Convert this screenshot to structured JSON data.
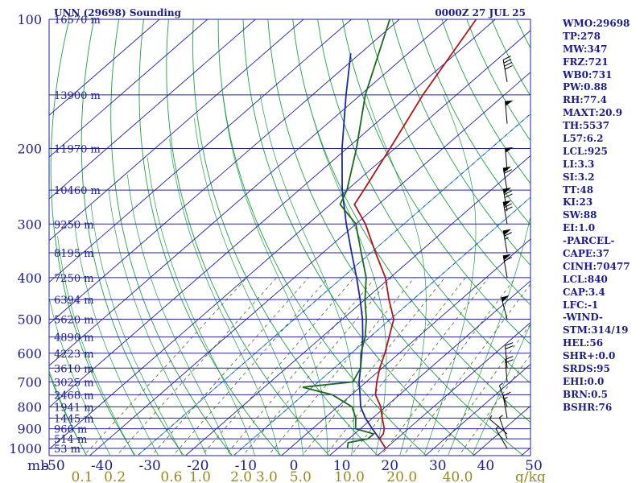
{
  "header": {
    "station": "UNN (29698) Sounding",
    "time": "0000Z 27 JUL 25"
  },
  "chart_data": {
    "type": "skew-t",
    "p_top": 100,
    "p_bottom": 1050,
    "t_min": -50,
    "t_max": 50,
    "pressure_labels": [
      "100",
      "200",
      "300",
      "400",
      "500",
      "600",
      "700",
      "800",
      "900",
      "1000"
    ],
    "pressure_unit": "mb",
    "height_levels": [
      {
        "p": 100,
        "label": "16570 m"
      },
      {
        "p": 150,
        "label": "13900 m"
      },
      {
        "p": 200,
        "label": "11970 m"
      },
      {
        "p": 250,
        "label": "10460 m"
      },
      {
        "p": 300,
        "label": "9250 m"
      },
      {
        "p": 350,
        "label": "8195 m"
      },
      {
        "p": 400,
        "label": "7250 m"
      },
      {
        "p": 450,
        "label": "6394 m"
      },
      {
        "p": 500,
        "label": "5620 m"
      },
      {
        "p": 550,
        "label": "4890 m"
      },
      {
        "p": 600,
        "label": "4223 m"
      },
      {
        "p": 650,
        "label": "3610 m"
      },
      {
        "p": 700,
        "label": "3025 m"
      },
      {
        "p": 750,
        "label": "2468 m"
      },
      {
        "p": 800,
        "label": "1941 m"
      },
      {
        "p": 850,
        "label": "1445 m"
      },
      {
        "p": 900,
        "label": "966 m"
      },
      {
        "p": 950,
        "label": "514 m"
      },
      {
        "p": 1000,
        "label": "53 m"
      }
    ],
    "temp_ticks": [
      "-50",
      "-40",
      "-30",
      "-20",
      "-10",
      "0",
      "10",
      "20",
      "30",
      "40",
      "50"
    ],
    "mixing_ratio_labels": [
      {
        "w": 0.1,
        "label": "0.1"
      },
      {
        "w": 0.2,
        "label": "0.2"
      },
      {
        "w": 0.6,
        "label": "0.6"
      },
      {
        "w": 1.0,
        "label": "1.0"
      },
      {
        "w": 2.0,
        "label": "2.0"
      },
      {
        "w": 3.0,
        "label": "3.0"
      },
      {
        "w": 5.0,
        "label": "5.0"
      },
      {
        "w": 10.0,
        "label": "10.0"
      },
      {
        "w": 20.0,
        "label": "20.0"
      },
      {
        "w": 40.0,
        "label": "40.0"
      }
    ],
    "mixing_ratio_unit": "g/kg",
    "temperature": [
      [
        1000,
        20.0
      ],
      [
        950,
        16.4
      ],
      [
        925,
        16.0
      ],
      [
        900,
        15.0
      ],
      [
        850,
        12.0
      ],
      [
        800,
        9.0
      ],
      [
        750,
        5.0
      ],
      [
        700,
        2.2
      ],
      [
        650,
        -0.5
      ],
      [
        600,
        -3.0
      ],
      [
        550,
        -6.0
      ],
      [
        500,
        -9.3
      ],
      [
        450,
        -15.0
      ],
      [
        400,
        -21.0
      ],
      [
        350,
        -29.0
      ],
      [
        300,
        -38.0
      ],
      [
        270,
        -45.0
      ],
      [
        250,
        -46.5
      ],
      [
        200,
        -51.0
      ],
      [
        150,
        -57.0
      ],
      [
        100,
        -64.0
      ]
    ],
    "dewpoint": [
      [
        1000,
        12.0
      ],
      [
        970,
        10.8
      ],
      [
        950,
        14.0
      ],
      [
        925,
        14.0
      ],
      [
        900,
        9.0
      ],
      [
        850,
        6.5
      ],
      [
        800,
        3.0
      ],
      [
        750,
        -4.0
      ],
      [
        720,
        -12.0
      ],
      [
        700,
        -2.8
      ],
      [
        650,
        -4.5
      ],
      [
        600,
        -8.0
      ],
      [
        550,
        -11.0
      ],
      [
        500,
        -15.0
      ],
      [
        450,
        -20.0
      ],
      [
        400,
        -25.0
      ],
      [
        350,
        -32.0
      ],
      [
        300,
        -40.0
      ],
      [
        270,
        -48.0
      ],
      [
        250,
        -50.0
      ],
      [
        200,
        -58.0
      ],
      [
        150,
        -69.0
      ],
      [
        100,
        -82.0
      ]
    ],
    "parcel": [
      [
        950,
        16.4
      ],
      [
        900,
        12.5
      ],
      [
        850,
        8.5
      ],
      [
        800,
        4.8
      ],
      [
        750,
        1.8
      ],
      [
        700,
        -1.5
      ],
      [
        650,
        -4.5
      ],
      [
        600,
        -7.8
      ],
      [
        550,
        -11.5
      ],
      [
        500,
        -15.8
      ],
      [
        450,
        -21.0
      ],
      [
        400,
        -27.0
      ],
      [
        350,
        -34.0
      ],
      [
        300,
        -42.0
      ],
      [
        250,
        -51.0
      ],
      [
        200,
        -61.0
      ],
      [
        150,
        -73.0
      ],
      [
        120,
        -82.0
      ]
    ],
    "wind_barbs": [
      {
        "p": 1000,
        "dir": 330,
        "kt": 5
      },
      {
        "p": 950,
        "dir": 340,
        "kt": 5
      },
      {
        "p": 925,
        "dir": 310,
        "kt": 5
      },
      {
        "p": 850,
        "dir": 350,
        "kt": 15
      },
      {
        "p": 800,
        "dir": 340,
        "kt": 5
      },
      {
        "p": 700,
        "dir": 355,
        "kt": 20
      },
      {
        "p": 650,
        "dir": 355,
        "kt": 20
      },
      {
        "p": 500,
        "dir": 345,
        "kt": 50
      },
      {
        "p": 400,
        "dir": 350,
        "kt": 60
      },
      {
        "p": 350,
        "dir": 350,
        "kt": 65
      },
      {
        "p": 300,
        "dir": 350,
        "kt": 70
      },
      {
        "p": 280,
        "dir": 350,
        "kt": 70
      },
      {
        "p": 250,
        "dir": 350,
        "kt": 60
      },
      {
        "p": 225,
        "dir": 355,
        "kt": 50
      },
      {
        "p": 175,
        "dir": 355,
        "kt": 50
      },
      {
        "p": 140,
        "dir": 350,
        "kt": 40
      }
    ]
  },
  "indices": [
    "WMO:29698",
    "TP:278",
    "MW:347",
    "FRZ:721",
    "WB0:731",
    "PW:0.88",
    "RH:77.4",
    "MAXT:20.9",
    "TH:5537",
    "L57:6.2",
    "LCL:925",
    "LI:3.3",
    "SI:3.2",
    "TT:48",
    "KI:23",
    "SW:88",
    "EI:1.0",
    "-PARCEL-",
    "CAPE:37",
    "CINH:70477",
    "LCL:840",
    "CAP:3.4",
    "LFC:-1",
    "-WIND-",
    "STM:314/19",
    "HEL:56",
    "SHR+:0.0",
    "SRDS:95",
    "EHI:0.0",
    "BRN:0.5",
    "BSHR:76"
  ],
  "colors": {
    "isobar": "#2222a0",
    "isotherm": "#2222a0",
    "dry_adiabat": "#20a040",
    "moist_adiabat": "#20a040",
    "mixing_ratio": "#4a6a1a",
    "temperature": "#b01818",
    "dewpoint": "#1a6a1a",
    "parcel": "#1a2aa0",
    "cyan": "#40c0e0",
    "text": "#1c1c8c",
    "mr_label": "#9a8a1e"
  }
}
